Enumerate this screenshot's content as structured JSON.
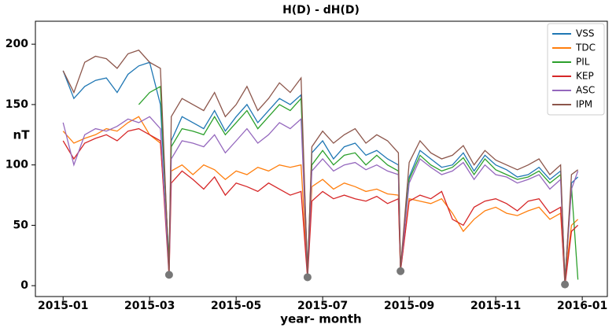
{
  "chart_data": {
    "type": "line",
    "title": "H(D) - dH(D)",
    "xlabel": "year- month",
    "ylabel": "nT",
    "x": [
      0,
      0.25,
      0.5,
      0.75,
      1,
      1.25,
      1.5,
      1.75,
      2,
      2.25,
      2.45,
      2.5,
      2.75,
      3,
      3.25,
      3.5,
      3.75,
      4,
      4.25,
      4.5,
      4.75,
      5,
      5.25,
      5.5,
      5.65,
      5.75,
      6,
      6.25,
      6.5,
      6.75,
      7,
      7.25,
      7.5,
      7.75,
      7.8,
      8,
      8.25,
      8.5,
      8.75,
      9,
      9.25,
      9.5,
      9.75,
      10,
      10.25,
      10.5,
      10.75,
      11,
      11.25,
      11.5,
      11.6,
      11.75,
      11.9
    ],
    "xlim": [
      -0.64,
      12.58
    ],
    "xticks": [
      {
        "value": 0,
        "label": "2015-01"
      },
      {
        "value": 2,
        "label": "2015-03"
      },
      {
        "value": 4,
        "label": "2015-05"
      },
      {
        "value": 6,
        "label": "2015-07"
      },
      {
        "value": 8,
        "label": "2015-09"
      },
      {
        "value": 10,
        "label": "2015-11"
      },
      {
        "value": 12,
        "label": "2016-01"
      }
    ],
    "ylim": [
      -9,
      219
    ],
    "yticks": [
      0,
      50,
      100,
      150,
      200
    ],
    "grid": false,
    "legend": "upper-right",
    "series": [
      {
        "name": "VSS",
        "color": "#1f77b4",
        "values": [
          178,
          155,
          165,
          170,
          172,
          160,
          175,
          182,
          185,
          150,
          20,
          120,
          140,
          135,
          130,
          145,
          128,
          140,
          150,
          135,
          145,
          155,
          150,
          158,
          12,
          110,
          120,
          105,
          115,
          118,
          108,
          112,
          105,
          100,
          15,
          90,
          112,
          105,
          98,
          100,
          110,
          95,
          108,
          100,
          96,
          90,
          92,
          98,
          88,
          95,
          5,
          85,
          90
        ]
      },
      {
        "name": "TDC",
        "color": "#ff7f0e",
        "values": [
          128,
          118,
          122,
          125,
          130,
          128,
          135,
          140,
          125,
          118,
          18,
          95,
          100,
          92,
          100,
          96,
          88,
          95,
          92,
          98,
          95,
          100,
          98,
          100,
          8,
          82,
          88,
          80,
          85,
          82,
          78,
          80,
          76,
          75,
          12,
          72,
          70,
          68,
          72,
          60,
          45,
          55,
          62,
          65,
          60,
          58,
          62,
          65,
          55,
          60,
          5,
          50,
          55
        ]
      },
      {
        "name": "PIL",
        "color": "#2ca02c",
        "values": [
          null,
          null,
          null,
          null,
          null,
          null,
          null,
          150,
          160,
          165,
          15,
          115,
          130,
          128,
          125,
          140,
          125,
          135,
          145,
          130,
          140,
          150,
          145,
          155,
          10,
          100,
          112,
          100,
          108,
          110,
          100,
          108,
          100,
          95,
          14,
          88,
          108,
          100,
          95,
          98,
          106,
          92,
          105,
          96,
          92,
          88,
          90,
          95,
          85,
          92,
          3,
          82,
          5
        ]
      },
      {
        "name": "KEP",
        "color": "#d62728",
        "values": [
          120,
          105,
          118,
          122,
          125,
          120,
          128,
          130,
          125,
          120,
          8,
          85,
          95,
          88,
          80,
          90,
          75,
          85,
          82,
          78,
          85,
          80,
          75,
          78,
          6,
          70,
          78,
          72,
          75,
          72,
          70,
          74,
          68,
          72,
          12,
          70,
          75,
          72,
          78,
          55,
          50,
          65,
          70,
          72,
          68,
          62,
          70,
          72,
          60,
          65,
          0,
          45,
          50
        ]
      },
      {
        "name": "ASC",
        "color": "#9467bd",
        "values": [
          135,
          100,
          125,
          130,
          128,
          132,
          138,
          135,
          140,
          130,
          10,
          105,
          120,
          118,
          115,
          125,
          110,
          120,
          130,
          118,
          125,
          135,
          130,
          138,
          8,
          95,
          105,
          95,
          100,
          102,
          96,
          100,
          95,
          92,
          13,
          85,
          105,
          98,
          92,
          95,
          102,
          88,
          100,
          92,
          90,
          85,
          88,
          92,
          80,
          88,
          2,
          80,
          95
        ]
      },
      {
        "name": "IPM",
        "color": "#8c564b",
        "values": [
          178,
          160,
          185,
          190,
          188,
          180,
          192,
          195,
          185,
          180,
          10,
          140,
          155,
          150,
          145,
          160,
          140,
          150,
          165,
          145,
          155,
          168,
          160,
          172,
          9,
          115,
          128,
          118,
          125,
          130,
          118,
          125,
          120,
          110,
          14,
          102,
          120,
          110,
          105,
          108,
          116,
          100,
          112,
          104,
          100,
          96,
          100,
          105,
          92,
          100,
          2,
          92,
          96
        ]
      }
    ],
    "markers": {
      "x": [
        2.45,
        5.65,
        7.8,
        11.6
      ],
      "values": [
        9,
        7,
        12,
        1
      ],
      "color": "#777777"
    }
  }
}
